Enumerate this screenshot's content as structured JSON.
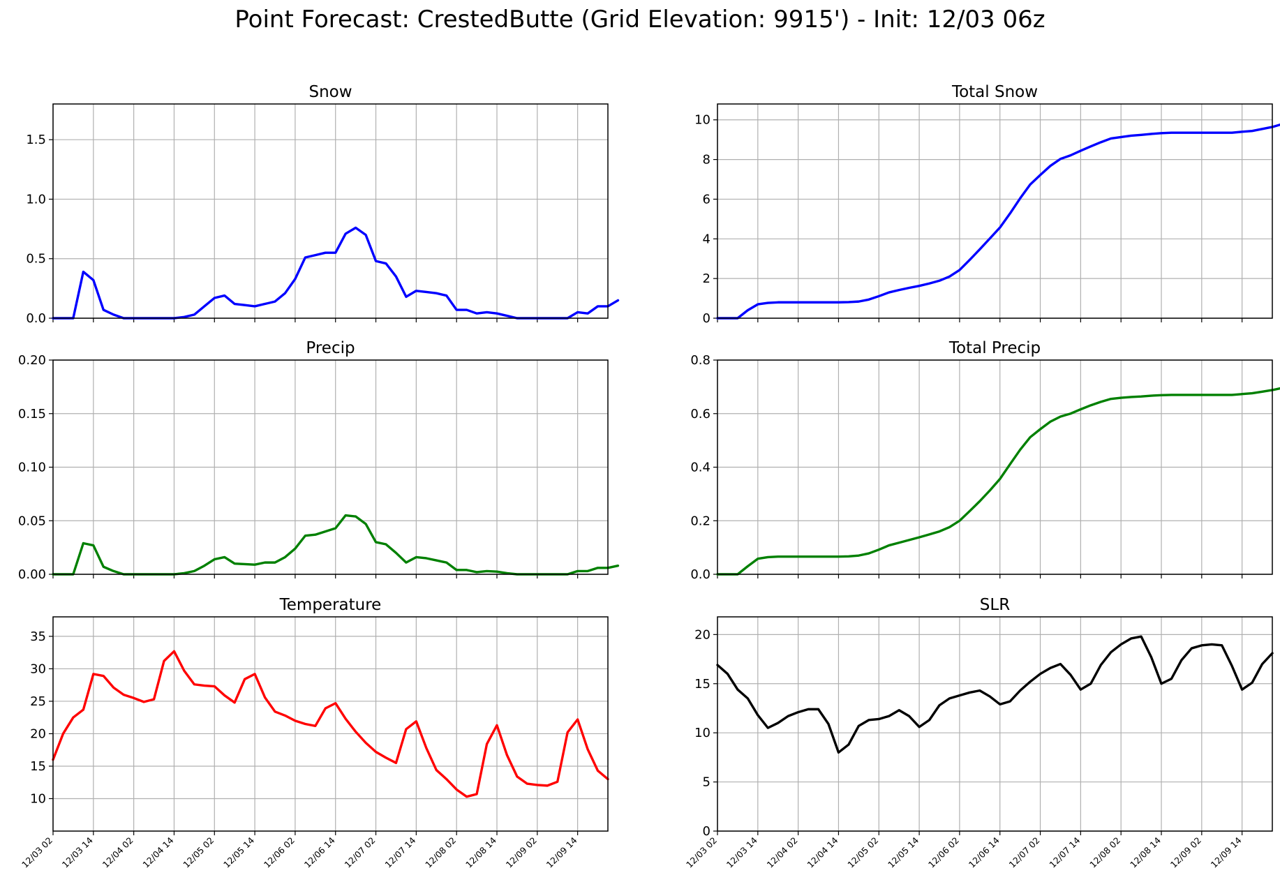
{
  "figure": {
    "title": "Point Forecast: CrestedButte (Grid Elevation: 9915') - Init: 12/03 06z"
  },
  "x_tick_labels": [
    "12/03 02",
    "12/03 14",
    "12/04 02",
    "12/04 14",
    "12/05 02",
    "12/05 14",
    "12/06 02",
    "12/06 14",
    "12/07 02",
    "12/07 14",
    "12/08 02",
    "12/08 14",
    "12/09 02",
    "12/09 14"
  ],
  "chart_data": [
    {
      "type": "line",
      "title": "Snow",
      "color": "#0000ff",
      "ylim": [
        0,
        1.8
      ],
      "yticks": [
        0.0,
        0.5,
        1.0,
        1.5
      ],
      "grid": true,
      "series": [
        {
          "values": [
            0.0,
            0.0,
            0.0,
            0.39,
            0.32,
            0.07,
            0.03,
            0.0,
            0.0,
            0.0,
            0.0,
            0.0,
            0.0,
            0.01,
            0.03,
            0.1,
            0.17,
            0.19,
            0.12,
            0.11,
            0.1,
            0.12,
            0.14,
            0.21,
            0.33,
            0.51,
            0.53,
            0.55,
            0.55,
            0.71,
            0.76,
            0.7,
            0.48,
            0.46,
            0.35,
            0.18,
            0.23,
            0.22,
            0.21,
            0.19,
            0.07,
            0.07,
            0.04,
            0.05,
            0.04,
            0.02,
            0.0,
            0.0,
            0.0,
            0.0,
            0.0,
            0.0,
            0.05,
            0.04,
            0.1,
            0.1,
            0.15
          ]
        }
      ]
    },
    {
      "type": "line",
      "title": "Total Snow",
      "color": "#0000ff",
      "ylim": [
        0,
        10.8
      ],
      "yticks": [
        0,
        2,
        4,
        6,
        8,
        10
      ],
      "grid": true,
      "series": [
        {
          "values": [
            0.0,
            0.0,
            0.0,
            0.4,
            0.7,
            0.77,
            0.8,
            0.8,
            0.8,
            0.8,
            0.8,
            0.8,
            0.8,
            0.81,
            0.84,
            0.94,
            1.11,
            1.3,
            1.42,
            1.53,
            1.63,
            1.75,
            1.89,
            2.1,
            2.43,
            2.94,
            3.47,
            4.02,
            4.57,
            5.28,
            6.04,
            6.74,
            7.22,
            7.68,
            8.03,
            8.21,
            8.44,
            8.66,
            8.87,
            9.06,
            9.13,
            9.2,
            9.24,
            9.29,
            9.33,
            9.35,
            9.35,
            9.35,
            9.35,
            9.35,
            9.35,
            9.35,
            9.4,
            9.44,
            9.54,
            9.64,
            9.79
          ]
        }
      ]
    },
    {
      "type": "line",
      "title": "Precip",
      "color": "#008000",
      "ylim": [
        0,
        0.2
      ],
      "yticks": [
        0.0,
        0.05,
        0.1,
        0.15,
        0.2
      ],
      "grid": true,
      "series": [
        {
          "values": [
            0.0,
            0.0,
            0.0,
            0.029,
            0.027,
            0.007,
            0.003,
            0.0,
            0.0,
            0.0,
            0.0,
            0.0,
            0.0,
            0.001,
            0.003,
            0.008,
            0.014,
            0.016,
            0.01,
            0.0095,
            0.009,
            0.011,
            0.011,
            0.016,
            0.024,
            0.036,
            0.037,
            0.04,
            0.043,
            0.055,
            0.054,
            0.047,
            0.03,
            0.028,
            0.02,
            0.011,
            0.016,
            0.015,
            0.013,
            0.011,
            0.004,
            0.004,
            0.002,
            0.003,
            0.0025,
            0.001,
            0.0,
            0.0,
            0.0,
            0.0,
            0.0,
            0.0,
            0.003,
            0.003,
            0.006,
            0.006,
            0.008
          ]
        }
      ]
    },
    {
      "type": "line",
      "title": "Total Precip",
      "color": "#008000",
      "ylim": [
        0,
        0.8
      ],
      "yticks": [
        0.0,
        0.2,
        0.4,
        0.6,
        0.8
      ],
      "grid": true,
      "series": [
        {
          "values": [
            0.0,
            0.0,
            0.0,
            0.03,
            0.058,
            0.064,
            0.066,
            0.066,
            0.066,
            0.066,
            0.066,
            0.066,
            0.066,
            0.067,
            0.07,
            0.078,
            0.092,
            0.108,
            0.118,
            0.128,
            0.138,
            0.149,
            0.16,
            0.176,
            0.2,
            0.236,
            0.273,
            0.313,
            0.356,
            0.411,
            0.465,
            0.512,
            0.542,
            0.57,
            0.589,
            0.6,
            0.616,
            0.631,
            0.644,
            0.655,
            0.659,
            0.662,
            0.664,
            0.667,
            0.669,
            0.67,
            0.67,
            0.67,
            0.67,
            0.67,
            0.67,
            0.67,
            0.673,
            0.676,
            0.682,
            0.688,
            0.696
          ]
        }
      ]
    },
    {
      "type": "line",
      "title": "Temperature",
      "color": "#ff0000",
      "ylim": [
        5,
        38
      ],
      "yticks": [
        10,
        15,
        20,
        25,
        30,
        35
      ],
      "grid": true,
      "series": [
        {
          "values": [
            16.0,
            20.0,
            22.5,
            23.7,
            29.2,
            28.9,
            27.1,
            26.0,
            25.5,
            24.9,
            25.3,
            31.2,
            32.7,
            29.7,
            27.6,
            27.4,
            27.3,
            25.9,
            24.8,
            28.4,
            29.2,
            25.6,
            23.4,
            22.8,
            22.0,
            21.5,
            21.2,
            23.9,
            24.7,
            22.3,
            20.3,
            18.6,
            17.2,
            16.3,
            15.5,
            20.7,
            21.9,
            17.8,
            14.4,
            13.0,
            11.4,
            10.3,
            10.7,
            18.4,
            21.3,
            16.7,
            13.4,
            12.3,
            12.1,
            12.0,
            12.6,
            20.2,
            22.2,
            17.6,
            14.3,
            13.0
          ]
        }
      ]
    },
    {
      "type": "line",
      "title": "SLR",
      "color": "#000000",
      "ylim": [
        0,
        21.8
      ],
      "yticks": [
        0,
        5,
        10,
        15,
        20
      ],
      "grid": true,
      "series": [
        {
          "values": [
            16.9,
            16.0,
            14.4,
            13.5,
            11.8,
            10.5,
            11.0,
            11.7,
            12.1,
            12.4,
            12.4,
            10.9,
            8.0,
            8.8,
            10.7,
            11.3,
            11.4,
            11.7,
            12.3,
            11.7,
            10.6,
            11.3,
            12.8,
            13.5,
            13.8,
            14.1,
            14.3,
            13.7,
            12.9,
            13.2,
            14.3,
            15.2,
            16.0,
            16.6,
            17.0,
            15.9,
            14.4,
            15.0,
            16.9,
            18.2,
            19.0,
            19.6,
            19.8,
            17.7,
            15.0,
            15.5,
            17.4,
            18.6,
            18.9,
            19.0,
            18.9,
            16.8,
            14.4,
            15.1,
            17.0,
            18.1
          ]
        }
      ]
    }
  ]
}
